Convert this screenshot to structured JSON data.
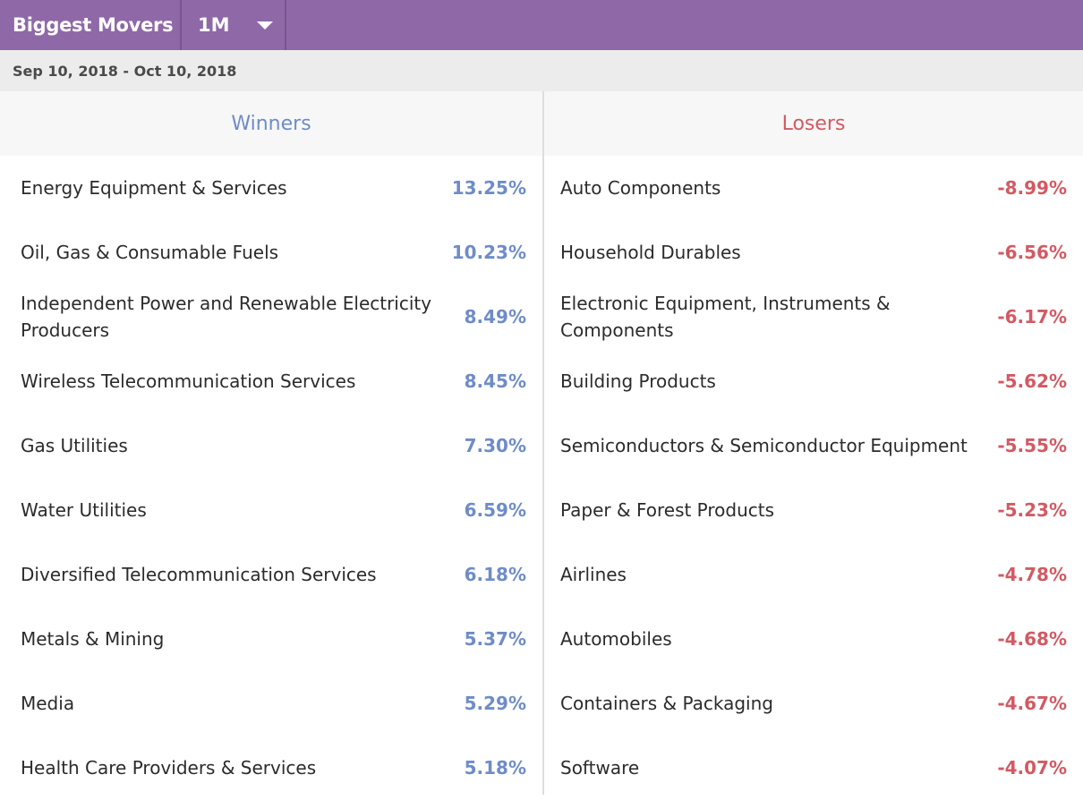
{
  "header": {
    "title": "Biggest Movers",
    "period": "1M"
  },
  "date_range": "Sep 10, 2018 - Oct 10, 2018",
  "winners": {
    "label": "Winners",
    "items": [
      {
        "name": "Energy Equipment & Services",
        "value": "13.25%"
      },
      {
        "name": "Oil, Gas & Consumable Fuels",
        "value": "10.23%"
      },
      {
        "name": "Independent Power and Renewable Electricity Producers",
        "value": "8.49%"
      },
      {
        "name": "Wireless Telecommunication Services",
        "value": "8.45%"
      },
      {
        "name": "Gas Utilities",
        "value": "7.30%"
      },
      {
        "name": "Water Utilities",
        "value": "6.59%"
      },
      {
        "name": "Diversified Telecommunication Services",
        "value": "6.18%"
      },
      {
        "name": "Metals & Mining",
        "value": "5.37%"
      },
      {
        "name": "Media",
        "value": "5.29%"
      },
      {
        "name": "Health Care Providers & Services",
        "value": "5.18%"
      }
    ]
  },
  "losers": {
    "label": "Losers",
    "items": [
      {
        "name": "Auto Components",
        "value": "-8.99%"
      },
      {
        "name": "Household Durables",
        "value": "-6.56%"
      },
      {
        "name": "Electronic Equipment, Instruments & Components",
        "value": "-6.17%"
      },
      {
        "name": "Building Products",
        "value": "-5.62%"
      },
      {
        "name": "Semiconductors & Semiconductor Equipment",
        "value": "-5.55%"
      },
      {
        "name": "Paper & Forest Products",
        "value": "-5.23%"
      },
      {
        "name": "Airlines",
        "value": "-4.78%"
      },
      {
        "name": "Automobiles",
        "value": "-4.68%"
      },
      {
        "name": "Containers & Packaging",
        "value": "-4.67%"
      },
      {
        "name": "Software",
        "value": "-4.07%"
      }
    ]
  },
  "colors": {
    "header_bg": "#8f68a8",
    "winners": "#6f8cc8",
    "losers": "#d25a63"
  },
  "icons": {
    "period_dropdown": "caret-down-icon"
  }
}
